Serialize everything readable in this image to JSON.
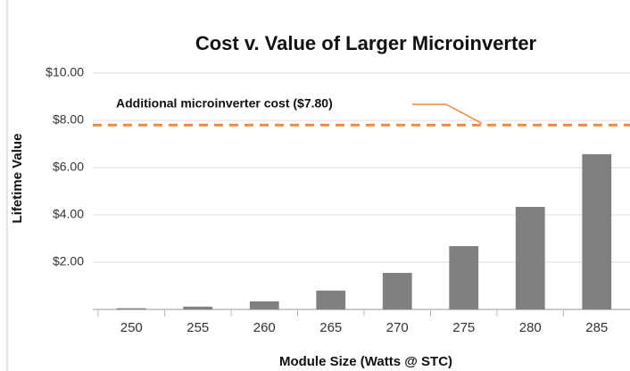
{
  "chart_data": {
    "type": "bar",
    "title": "Cost v. Value of Larger Microinverter",
    "x_label": "Module Size (Watts @ STC)",
    "y_label": "Lifetime Value",
    "categories": [
      "250",
      "255",
      "260",
      "265",
      "270",
      "275",
      "280",
      "285"
    ],
    "values": [
      0.05,
      0.12,
      0.34,
      0.8,
      1.55,
      2.68,
      4.34,
      6.57
    ],
    "color": "#808083",
    "ylim": [
      0,
      10
    ],
    "yticks": [
      {
        "value": 2,
        "label": "$2.00"
      },
      {
        "value": 4,
        "label": "$4.00"
      },
      {
        "value": 6,
        "label": "$6.00"
      },
      {
        "value": 8,
        "label": "$8.00"
      },
      {
        "value": 10,
        "label": "$10.00"
      }
    ],
    "grid": true,
    "reference_line": {
      "value": 7.8,
      "label": "Additional microinverter cost  ($7.80)",
      "color": "#f08a3c"
    }
  }
}
